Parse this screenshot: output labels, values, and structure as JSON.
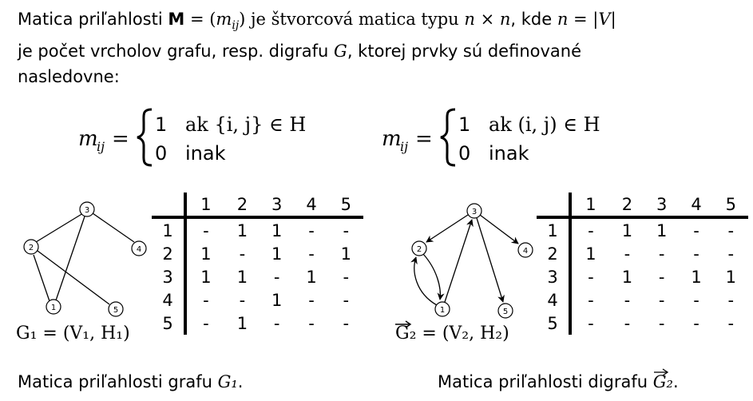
{
  "intro": {
    "t1": "Matica priľahlosti ",
    "M": "M",
    "t2": " = (",
    "m": "m",
    "ij": "ij",
    "t3": ") je štvorcová matica typu ",
    "n1": "n",
    "times": " × ",
    "n2": "n",
    "t4": ", kde ",
    "n3": "n",
    "eq": " = |",
    "V": "V",
    "bar": "|",
    "t5": "je počet vrcholov grafu, resp. digrafu ",
    "G": "G",
    "t6": ", ktorej prvky sú definované",
    "t7": "nasledovne:"
  },
  "formula_left": {
    "lhs": "m",
    "sub": "ij",
    "equals": "=",
    "case1_val": "1",
    "case1_cond": "ak {i, j} ∈ H",
    "case2_val": "0",
    "case2_cond": "inak"
  },
  "formula_right": {
    "lhs": "m",
    "sub": "ij",
    "equals": "=",
    "case1_val": "1",
    "case1_cond": "ak (i, j) ∈ H",
    "case2_val": "0",
    "case2_cond": "inak"
  },
  "graph1": {
    "nodes": [
      "1",
      "2",
      "3",
      "4",
      "5"
    ],
    "edges": [
      [
        "3",
        "2"
      ],
      [
        "3",
        "1"
      ],
      [
        "3",
        "4"
      ],
      [
        "2",
        "1"
      ],
      [
        "2",
        "5"
      ]
    ],
    "label": "G₁ = (V₁, H₁)"
  },
  "graph2": {
    "nodes": [
      "1",
      "2",
      "3",
      "4",
      "5"
    ],
    "arcs": [
      [
        "1",
        "2"
      ],
      [
        "2",
        "1"
      ],
      [
        "3",
        "2"
      ],
      [
        "1",
        "3"
      ],
      [
        "3",
        "4"
      ],
      [
        "3",
        "5"
      ]
    ],
    "label": "G₂ = (V₂, H₂)"
  },
  "matrix1": {
    "cols": [
      "1",
      "2",
      "3",
      "4",
      "5"
    ],
    "rows": [
      {
        "h": "1",
        "c": [
          "-",
          "1",
          "1",
          "-",
          "-"
        ]
      },
      {
        "h": "2",
        "c": [
          "1",
          "-",
          "1",
          "-",
          "1"
        ]
      },
      {
        "h": "3",
        "c": [
          "1",
          "1",
          "-",
          "1",
          "-"
        ]
      },
      {
        "h": "4",
        "c": [
          "-",
          "-",
          "1",
          "-",
          "-"
        ]
      },
      {
        "h": "5",
        "c": [
          "-",
          "1",
          "-",
          "-",
          "-"
        ]
      }
    ]
  },
  "matrix2": {
    "cols": [
      "1",
      "2",
      "3",
      "4",
      "5"
    ],
    "rows": [
      {
        "h": "1",
        "c": [
          "-",
          "1",
          "1",
          "-",
          "-"
        ]
      },
      {
        "h": "2",
        "c": [
          "1",
          "-",
          "-",
          "-",
          "-"
        ]
      },
      {
        "h": "3",
        "c": [
          "-",
          "1",
          "-",
          "1",
          "1"
        ]
      },
      {
        "h": "4",
        "c": [
          "-",
          "-",
          "-",
          "-",
          "-"
        ]
      },
      {
        "h": "5",
        "c": [
          "-",
          "-",
          "-",
          "-",
          "-"
        ]
      }
    ]
  },
  "caption_left": {
    "text": "Matica priľahlosti grafu ",
    "sym": "G₁",
    "end": "."
  },
  "caption_right": {
    "text": "Matica priľahlosti digrafu ",
    "sym": "G₂",
    "end": "."
  }
}
